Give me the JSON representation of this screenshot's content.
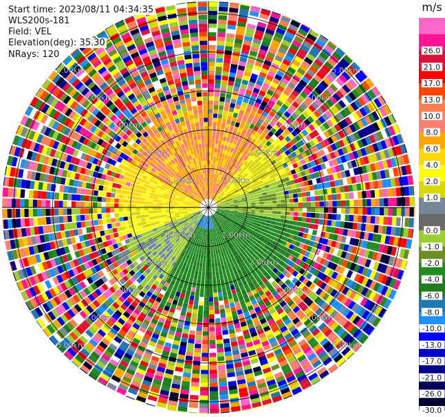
{
  "info": {
    "start_time": "Start time: 2023/08/11 04:34:35",
    "instrument": "WLS200s-181",
    "field": "Field: VEL",
    "elevation": "Elevation(deg): 35.30",
    "nrays": "NRays: 120"
  },
  "chart_data": {
    "type": "ppi",
    "field": "VEL",
    "nrays": 120,
    "elevation_deg": 35.3,
    "range_rings_km": [
      1.0,
      2.0,
      3.0,
      4.0,
      5.0
    ],
    "range_ring_labels": [
      "1.00km",
      "2.00km",
      "3.00km",
      "4.00km",
      "5.00km"
    ],
    "max_range_km": 5.3,
    "colorbar": {
      "unit": "m/s",
      "bins": [
        {
          "label": "-30.0",
          "color": "#000033"
        },
        {
          "label": "-26.0",
          "color": "#00005c"
        },
        {
          "label": "-21.0",
          "color": "#00008b"
        },
        {
          "label": "-17.0",
          "color": "#0000cd"
        },
        {
          "label": "-13.0",
          "color": "#0000ff"
        },
        {
          "label": "-10.0",
          "color": "#1e90ff"
        },
        {
          "label": "-8.0",
          "color": "#1f77b4"
        },
        {
          "label": "-6.0",
          "color": "#1e7b1e"
        },
        {
          "label": "-4.0",
          "color": "#228b22"
        },
        {
          "label": "-2.0",
          "color": "#6b8e23"
        },
        {
          "label": "-1.0",
          "color": "#9acd32"
        },
        {
          "label": "0.0",
          "color": "#696969"
        },
        {
          "label": "",
          "color": "#778899"
        },
        {
          "label": "1.0",
          "color": "#d8d800"
        },
        {
          "label": "2.0",
          "color": "#ffff00"
        },
        {
          "label": "4.0",
          "color": "#ffd700"
        },
        {
          "label": "6.0",
          "color": "#ffa500"
        },
        {
          "label": "8.0",
          "color": "#fa8072"
        },
        {
          "label": "10.0",
          "color": "#ff7f50"
        },
        {
          "label": "13.0",
          "color": "#ff4500"
        },
        {
          "label": "17.0",
          "color": "#ff0000"
        },
        {
          "label": "21.0",
          "color": "#dc143c"
        },
        {
          "label": "26.0",
          "color": "#ff1493"
        },
        {
          "label": "",
          "color": "#ff66cc"
        }
      ],
      "top_label": "m/s",
      "bottom_label": "-30.0"
    }
  }
}
